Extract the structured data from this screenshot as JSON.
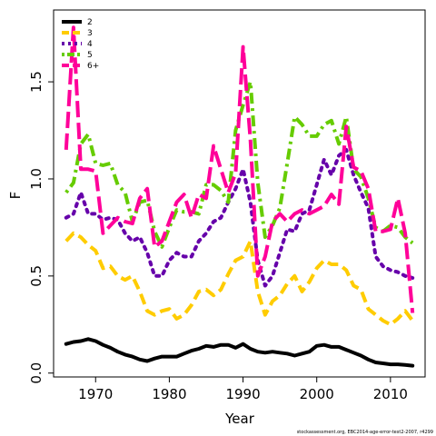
{
  "chart_data": {
    "type": "line",
    "title": "",
    "xlabel": "Year",
    "ylabel": "F",
    "xlim": [
      1964.3,
      2014.7
    ],
    "ylim": [
      -0.02,
      1.87
    ],
    "x_ticks": [
      1970,
      1980,
      1990,
      2000,
      2010
    ],
    "x_tick_labels": [
      "1970",
      "1980",
      "1990",
      "2000",
      "2010"
    ],
    "y_ticks": [
      0.0,
      0.5,
      1.0,
      1.5
    ],
    "y_tick_labels": [
      "0.0",
      "0.5",
      "1.0",
      "1.5"
    ],
    "grid": false,
    "legend_position": "top-left",
    "footnote": "stockassessment.org, EBC2014-age-error-test2-2007, r4299",
    "x": [
      1966,
      1967,
      1968,
      1969,
      1970,
      1971,
      1972,
      1973,
      1974,
      1975,
      1976,
      1977,
      1978,
      1979,
      1980,
      1981,
      1982,
      1983,
      1984,
      1985,
      1986,
      1987,
      1988,
      1989,
      1990,
      1991,
      1992,
      1993,
      1994,
      1995,
      1996,
      1997,
      1998,
      1999,
      2000,
      2001,
      2002,
      2003,
      2004,
      2005,
      2006,
      2007,
      2008,
      2009,
      2010,
      2011,
      2012,
      2013
    ],
    "series": [
      {
        "name": "2",
        "color": "#000000",
        "dash": "solid",
        "values": [
          0.15,
          0.16,
          0.165,
          0.175,
          0.165,
          0.145,
          0.13,
          0.11,
          0.095,
          0.085,
          0.07,
          0.062,
          0.075,
          0.085,
          0.085,
          0.085,
          0.1,
          0.115,
          0.125,
          0.14,
          0.135,
          0.145,
          0.145,
          0.13,
          0.15,
          0.125,
          0.11,
          0.105,
          0.11,
          0.105,
          0.1,
          0.09,
          0.1,
          0.11,
          0.14,
          0.145,
          0.135,
          0.135,
          0.12,
          0.105,
          0.09,
          0.07,
          0.055,
          0.05,
          0.045,
          0.045,
          0.042,
          0.038
        ]
      },
      {
        "name": "3",
        "color": "#FFCC00",
        "dash": "dash",
        "values": [
          0.68,
          0.72,
          0.7,
          0.66,
          0.63,
          0.54,
          0.55,
          0.5,
          0.48,
          0.5,
          0.42,
          0.32,
          0.3,
          0.32,
          0.33,
          0.28,
          0.3,
          0.35,
          0.42,
          0.43,
          0.4,
          0.43,
          0.51,
          0.58,
          0.6,
          0.68,
          0.42,
          0.3,
          0.37,
          0.4,
          0.46,
          0.5,
          0.42,
          0.47,
          0.54,
          0.58,
          0.56,
          0.56,
          0.53,
          0.45,
          0.43,
          0.33,
          0.3,
          0.27,
          0.25,
          0.28,
          0.32,
          0.27
        ]
      },
      {
        "name": "4",
        "color": "#6600AA",
        "dash": "dot",
        "values": [
          0.8,
          0.82,
          0.93,
          0.82,
          0.82,
          0.79,
          0.8,
          0.79,
          0.72,
          0.68,
          0.7,
          0.62,
          0.5,
          0.5,
          0.58,
          0.62,
          0.6,
          0.6,
          0.68,
          0.72,
          0.78,
          0.8,
          0.88,
          0.95,
          1.05,
          0.88,
          0.58,
          0.45,
          0.5,
          0.62,
          0.74,
          0.73,
          0.82,
          0.84,
          0.97,
          1.1,
          1.02,
          1.12,
          1.15,
          1.02,
          0.93,
          0.85,
          0.6,
          0.55,
          0.53,
          0.52,
          0.5,
          0.49
        ]
      },
      {
        "name": "5",
        "color": "#66CC00",
        "dash": "dashdot",
        "values": [
          0.93,
          0.98,
          1.18,
          1.23,
          1.08,
          1.07,
          1.08,
          0.97,
          0.93,
          0.78,
          0.88,
          0.89,
          0.73,
          0.65,
          0.75,
          0.84,
          0.83,
          0.83,
          0.82,
          0.97,
          0.97,
          0.94,
          0.88,
          1.25,
          1.38,
          1.5,
          0.98,
          0.7,
          0.76,
          0.85,
          1.08,
          1.32,
          1.28,
          1.22,
          1.22,
          1.28,
          1.3,
          1.18,
          1.32,
          1.05,
          1.01,
          0.9,
          0.75,
          0.73,
          0.76,
          0.75,
          0.7,
          0.67
        ]
      },
      {
        "name": "6+",
        "color": "#FF0099",
        "dash": "longdash",
        "values": [
          1.15,
          1.78,
          1.05,
          1.05,
          1.04,
          0.72,
          0.76,
          0.8,
          0.78,
          0.77,
          0.9,
          0.95,
          0.65,
          0.68,
          0.78,
          0.88,
          0.92,
          0.8,
          0.92,
          0.9,
          1.17,
          1.05,
          0.93,
          1.03,
          1.68,
          1.2,
          0.5,
          0.6,
          0.78,
          0.82,
          0.78,
          0.82,
          0.84,
          0.82,
          0.84,
          0.86,
          0.92,
          0.87,
          1.27,
          1.06,
          1.04,
          0.95,
          0.73,
          0.73,
          0.74,
          0.9,
          0.72,
          0.31
        ]
      }
    ]
  }
}
